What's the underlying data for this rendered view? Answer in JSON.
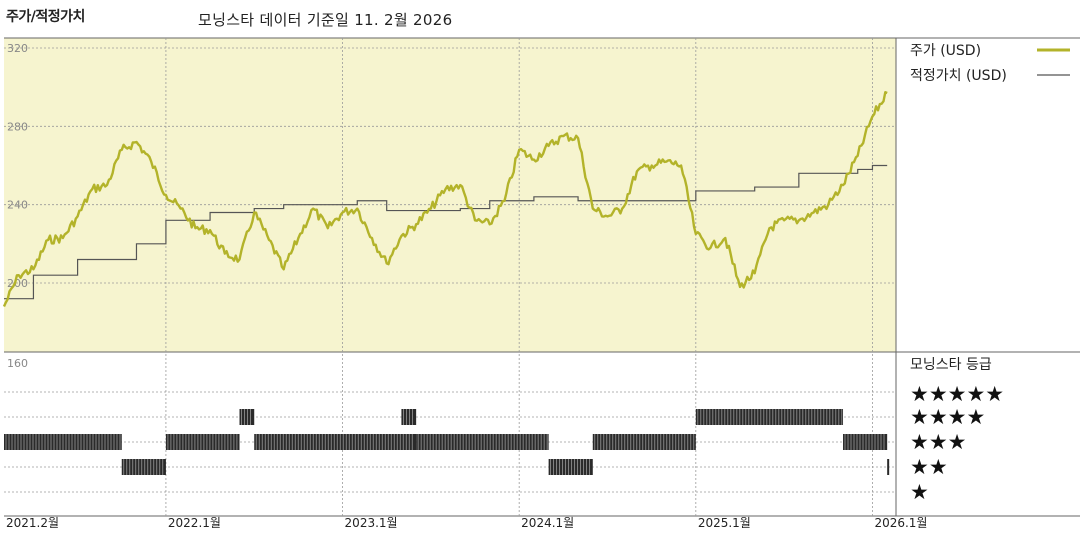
{
  "header": {
    "title": "주가/적정가치",
    "subtitle": "모닝스타 데이터 기준일 11. 2월 2026"
  },
  "legend": {
    "price_label": "주가 (USD)",
    "fair_label": "적정가치 (USD)",
    "rating_title": "모닝스타 등급"
  },
  "colors": {
    "price": "#b3b32a",
    "fair": "#555555",
    "plot_bg": "#f6f4cf",
    "bars": "#222222"
  },
  "stars": [
    "★★★★★",
    "★★★★",
    "★★★",
    "★★",
    "★"
  ],
  "chart_data": {
    "type": "line",
    "ylim": [
      160,
      320
    ],
    "yticks": [
      "320",
      "280",
      "240",
      "200",
      "160"
    ],
    "x_range": [
      "2021-02",
      "2026-02"
    ],
    "xticks": [
      "2021.2월",
      "2022.1월",
      "2023.1월",
      "2024.1월",
      "2025.1월",
      "2026.1월"
    ],
    "grid": true,
    "legend_position": "top-right",
    "series": [
      {
        "name": "주가 (USD)",
        "points": [
          [
            "2021-02",
            188
          ],
          [
            "2021-03",
            204
          ],
          [
            "2021-04",
            207
          ],
          [
            "2021-05",
            222
          ],
          [
            "2021-06",
            223
          ],
          [
            "2021-07",
            234
          ],
          [
            "2021-08",
            248
          ],
          [
            "2021-09",
            250
          ],
          [
            "2021-10",
            268
          ],
          [
            "2021-11",
            272
          ],
          [
            "2021-12",
            262
          ],
          [
            "2022-01",
            245
          ],
          [
            "2022-02",
            238
          ],
          [
            "2022-03",
            228
          ],
          [
            "2022-04",
            227
          ],
          [
            "2022-05",
            215
          ],
          [
            "2022-06",
            212
          ],
          [
            "2022-07",
            236
          ],
          [
            "2022-08",
            222
          ],
          [
            "2022-09",
            207
          ],
          [
            "2022-10",
            223
          ],
          [
            "2022-11",
            238
          ],
          [
            "2022-12",
            228
          ],
          [
            "2023-01",
            236
          ],
          [
            "2023-02",
            238
          ],
          [
            "2023-03",
            223
          ],
          [
            "2023-04",
            210
          ],
          [
            "2023-05",
            224
          ],
          [
            "2023-06",
            230
          ],
          [
            "2023-07",
            238
          ],
          [
            "2023-08",
            248
          ],
          [
            "2023-09",
            250
          ],
          [
            "2023-10",
            232
          ],
          [
            "2023-11",
            230
          ],
          [
            "2023-12",
            242
          ],
          [
            "2024-01",
            268
          ],
          [
            "2024-02",
            263
          ],
          [
            "2024-03",
            270
          ],
          [
            "2024-04",
            275
          ],
          [
            "2024-05",
            274
          ],
          [
            "2024-06",
            238
          ],
          [
            "2024-07",
            234
          ],
          [
            "2024-08",
            238
          ],
          [
            "2024-09",
            257
          ],
          [
            "2024-10",
            260
          ],
          [
            "2024-11",
            262
          ],
          [
            "2024-12",
            260
          ],
          [
            "2025-01",
            225
          ],
          [
            "2025-02",
            218
          ],
          [
            "2025-03",
            223
          ],
          [
            "2025-04",
            198
          ],
          [
            "2025-05",
            205
          ],
          [
            "2025-06",
            228
          ],
          [
            "2025-07",
            232
          ],
          [
            "2025-08",
            232
          ],
          [
            "2025-09",
            236
          ],
          [
            "2025-10",
            240
          ],
          [
            "2025-11",
            250
          ],
          [
            "2025-12",
            265
          ],
          [
            "2026-01",
            285
          ],
          [
            "2026-02",
            297
          ]
        ]
      },
      {
        "name": "적정가치 (USD)",
        "steps": [
          [
            "2021-02",
            192
          ],
          [
            "2021-04",
            204
          ],
          [
            "2021-07",
            212
          ],
          [
            "2021-11",
            220
          ],
          [
            "2022-01",
            232
          ],
          [
            "2022-04",
            236
          ],
          [
            "2022-07",
            238
          ],
          [
            "2022-09",
            240
          ],
          [
            "2023-02",
            242
          ],
          [
            "2023-04",
            237
          ],
          [
            "2023-09",
            238
          ],
          [
            "2023-11",
            242
          ],
          [
            "2024-02",
            244
          ],
          [
            "2024-05",
            242
          ],
          [
            "2025-01",
            247
          ],
          [
            "2025-05",
            249
          ],
          [
            "2025-08",
            256
          ],
          [
            "2025-12",
            258
          ],
          [
            "2026-01",
            260
          ]
        ]
      }
    ],
    "rating_history": [
      {
        "stars": 3,
        "from": "2021-02",
        "to": "2021-10"
      },
      {
        "stars": 2,
        "from": "2021-10",
        "to": "2022-01"
      },
      {
        "stars": 3,
        "from": "2022-01",
        "to": "2022-06"
      },
      {
        "stars": 4,
        "from": "2022-06",
        "to": "2022-07"
      },
      {
        "stars": 3,
        "from": "2022-07",
        "to": "2023-06"
      },
      {
        "stars": 4,
        "from": "2023-05",
        "to": "2023-06"
      },
      {
        "stars": 3,
        "from": "2023-06",
        "to": "2024-03"
      },
      {
        "stars": 2,
        "from": "2024-03",
        "to": "2024-06"
      },
      {
        "stars": 3,
        "from": "2024-06",
        "to": "2025-01"
      },
      {
        "stars": 4,
        "from": "2025-01",
        "to": "2025-11"
      },
      {
        "stars": 3,
        "from": "2025-11",
        "to": "2026-02"
      },
      {
        "stars": 2,
        "from": "2026-02",
        "to": "2026-02"
      }
    ]
  }
}
